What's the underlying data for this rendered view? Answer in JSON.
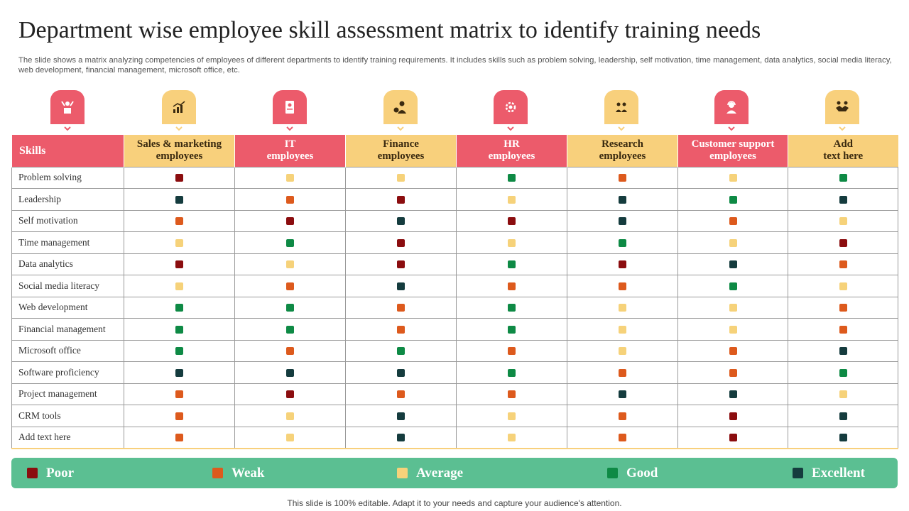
{
  "title": "Department wise employee skill assessment matrix to identify training needs",
  "subtitle": "The slide shows a matrix analyzing competencies of employees of different departments to identify training requirements. It includes skills such as problem solving, leadership, self motivation, time management, data analytics, social media literacy, web development, financial management, microsoft office, etc.",
  "colors": {
    "poor": "#8b0d0f",
    "weak": "#dd5a1d",
    "average": "#f6d27a",
    "good": "#0e8a45",
    "excellent": "#153c3e",
    "header_red": "#ec5b6b",
    "header_yellow": "#f8d07c",
    "legend_bg": "#5bbf92"
  },
  "table": {
    "skills_header": "Skills",
    "columns": [
      {
        "line1": "Sales & marketing",
        "line2": "employees",
        "icon": "presenter-icon",
        "tone": "yellow"
      },
      {
        "line1": "IT",
        "line2": "employees",
        "icon": "growth-chart-icon",
        "tone": "red"
      },
      {
        "line1": "Finance",
        "line2": "employees",
        "icon": "document-icon",
        "tone": "yellow"
      },
      {
        "line1": "HR",
        "line2": "employees",
        "icon": "finance-person-icon",
        "tone": "red"
      },
      {
        "line1": "Research",
        "line2": "employees",
        "icon": "gear-team-icon",
        "tone": "yellow"
      },
      {
        "line1": "Customer support",
        "line2": "employees",
        "icon": "analysis-team-icon",
        "tone": "red"
      },
      {
        "line1": "Add",
        "line2": "text here",
        "icon": "support-agent-icon",
        "tone": "yellow"
      }
    ],
    "extra_tab_icon": "handshake-icon",
    "rows": [
      {
        "skill": "Problem solving",
        "ratings": [
          "poor",
          "average",
          "average",
          "good",
          "weak",
          "average",
          "good"
        ]
      },
      {
        "skill": "Leadership",
        "ratings": [
          "excellent",
          "weak",
          "poor",
          "average",
          "excellent",
          "good",
          "excellent"
        ]
      },
      {
        "skill": "Self motivation",
        "ratings": [
          "weak",
          "poor",
          "excellent",
          "poor",
          "excellent",
          "weak",
          "average"
        ]
      },
      {
        "skill": "Time management",
        "ratings": [
          "average",
          "good",
          "poor",
          "average",
          "good",
          "average",
          "poor"
        ]
      },
      {
        "skill": "Data analytics",
        "ratings": [
          "poor",
          "average",
          "poor",
          "good",
          "poor",
          "excellent",
          "weak"
        ]
      },
      {
        "skill": "Social media literacy",
        "ratings": [
          "average",
          "weak",
          "excellent",
          "weak",
          "weak",
          "good",
          "average"
        ]
      },
      {
        "skill": "Web development",
        "ratings": [
          "good",
          "good",
          "weak",
          "good",
          "average",
          "average",
          "weak"
        ]
      },
      {
        "skill": "Financial management",
        "ratings": [
          "good",
          "good",
          "weak",
          "good",
          "average",
          "average",
          "weak"
        ]
      },
      {
        "skill": "Microsoft office",
        "ratings": [
          "good",
          "weak",
          "good",
          "weak",
          "average",
          "weak",
          "excellent"
        ]
      },
      {
        "skill": "Software proficiency",
        "ratings": [
          "excellent",
          "excellent",
          "excellent",
          "good",
          "weak",
          "weak",
          "good"
        ]
      },
      {
        "skill": "Project management",
        "ratings": [
          "weak",
          "poor",
          "weak",
          "weak",
          "excellent",
          "excellent",
          "average"
        ]
      },
      {
        "skill": "CRM tools",
        "ratings": [
          "weak",
          "average",
          "excellent",
          "average",
          "weak",
          "poor",
          "excellent"
        ]
      },
      {
        "skill": "Add text here",
        "ratings": [
          "weak",
          "average",
          "excellent",
          "average",
          "weak",
          "poor",
          "excellent"
        ]
      }
    ]
  },
  "legend": [
    {
      "key": "poor",
      "label": "Poor"
    },
    {
      "key": "weak",
      "label": "Weak"
    },
    {
      "key": "average",
      "label": "Average"
    },
    {
      "key": "good",
      "label": "Good"
    },
    {
      "key": "excellent",
      "label": "Excellent"
    }
  ],
  "footer": "This slide is 100% editable. Adapt it to your needs and capture your audience's attention."
}
